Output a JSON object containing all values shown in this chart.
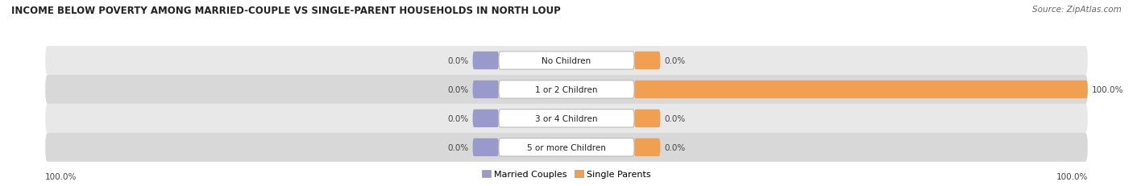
{
  "title": "INCOME BELOW POVERTY AMONG MARRIED-COUPLE VS SINGLE-PARENT HOUSEHOLDS IN NORTH LOUP",
  "source": "Source: ZipAtlas.com",
  "categories": [
    "No Children",
    "1 or 2 Children",
    "3 or 4 Children",
    "5 or more Children"
  ],
  "married_values": [
    0.0,
    0.0,
    0.0,
    0.0
  ],
  "single_values": [
    0.0,
    100.0,
    0.0,
    0.0
  ],
  "married_color": "#9999cc",
  "single_color": "#f0a050",
  "row_bg_colors": [
    "#e8e8e8",
    "#d8d8d8",
    "#e8e8e8",
    "#d8d8d8"
  ],
  "stub_size": 5.0,
  "left_axis_label": "100.0%",
  "right_axis_label": "100.0%",
  "title_fontsize": 8.5,
  "source_fontsize": 7.5,
  "label_fontsize": 7.5,
  "cat_fontsize": 7.5,
  "legend_fontsize": 8,
  "legend_labels": [
    "Married Couples",
    "Single Parents"
  ]
}
